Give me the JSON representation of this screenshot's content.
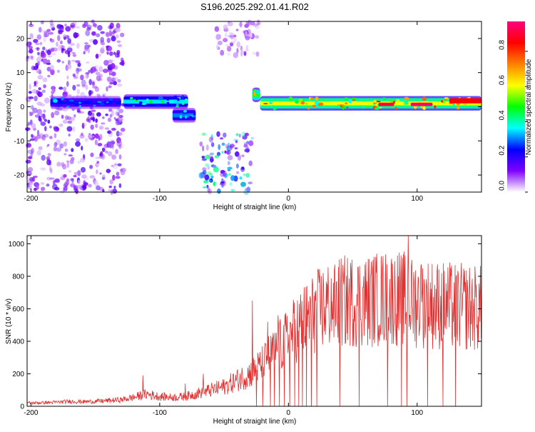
{
  "title": "S196.2025.292.01.41.R02",
  "chart_data": [
    {
      "type": "heatmap",
      "xlabel": "Height of straight line (km)",
      "ylabel": "Frequency (Hz)",
      "xlim": [
        -203,
        150
      ],
      "ylim": [
        -25,
        25
      ],
      "x_ticks": [
        "-200",
        "-100",
        "0",
        "100"
      ],
      "x_tick_values": [
        -200,
        -100,
        0,
        100
      ],
      "y_ticks": [
        "20",
        "10",
        "0",
        "-10",
        "-20"
      ],
      "y_tick_values": [
        20,
        10,
        0,
        -10,
        -20
      ],
      "colorbar": {
        "label": "Normalized spectral amplitude",
        "range": [
          0,
          0.97
        ],
        "ticks": [
          "0.0",
          "0.2",
          "0.4",
          "0.6",
          "0.8"
        ],
        "tick_values": [
          0.0,
          0.2,
          0.4,
          0.6,
          0.8
        ],
        "colors": [
          "#ffffff",
          "#8000ff",
          "#0000ff",
          "#00ffff",
          "#00ff00",
          "#ffff00",
          "#ff8000",
          "#ff0000",
          "#ff0080"
        ]
      },
      "regions": [
        {
          "label": "scattered noise",
          "x": [
            -203,
            -128
          ],
          "y": [
            -25,
            25
          ],
          "amplitude": 0.12
        },
        {
          "label": "band",
          "x": [
            -185,
            -130
          ],
          "y": [
            0,
            2.5
          ],
          "amplitude": 0.25
        },
        {
          "label": "band",
          "x": [
            -128,
            -78
          ],
          "y": [
            0,
            3
          ],
          "amplitude": 0.35
        },
        {
          "label": "band",
          "x": [
            -90,
            -72
          ],
          "y": [
            -4,
            -1
          ],
          "amplitude": 0.3
        },
        {
          "label": "scattered noise",
          "x": [
            -68,
            -28
          ],
          "y": [
            -25,
            -8
          ],
          "amplitude": 0.3
        },
        {
          "label": "scattered noise",
          "x": [
            -58,
            -22
          ],
          "y": [
            15,
            25
          ],
          "amplitude": 0.08
        },
        {
          "label": "onset",
          "x": [
            -28,
            -22
          ],
          "y": [
            2,
            5
          ],
          "amplitude": 0.5
        },
        {
          "label": "band",
          "x": [
            -22,
            150
          ],
          "y": [
            -0.5,
            2.5
          ],
          "amplitude": 0.6
        },
        {
          "label": "peak",
          "x": [
            70,
            82
          ],
          "y": [
            0.2,
            1.2
          ],
          "amplitude": 0.9
        },
        {
          "label": "peak",
          "x": [
            95,
            112
          ],
          "y": [
            0.2,
            1.2
          ],
          "amplitude": 0.95
        },
        {
          "label": "peak",
          "x": [
            125,
            150
          ],
          "y": [
            1.0,
            2.5
          ],
          "amplitude": 0.85
        }
      ]
    },
    {
      "type": "line",
      "xlabel": "Height of straight line (km)",
      "ylabel": "SNR (10 * v/v)",
      "xlim": [
        -203,
        150
      ],
      "ylim": [
        0,
        1050
      ],
      "x_ticks": [
        "-200",
        "-100",
        "0",
        "100"
      ],
      "x_tick_values": [
        -200,
        -100,
        0,
        100
      ],
      "y_ticks": [
        "0",
        "200",
        "400",
        "600",
        "800",
        "1000"
      ],
      "y_tick_values": [
        0,
        200,
        400,
        600,
        800,
        1000
      ],
      "color": "#e03030",
      "series": [
        {
          "x": [
            -203,
            -190,
            -180,
            -170,
            -160,
            -150,
            -140,
            -130,
            -120,
            -110,
            -100,
            -90,
            -80,
            -70,
            -60,
            -50,
            -40,
            -30,
            -25,
            -20,
            -15,
            -10,
            -5,
            0,
            5,
            10,
            15,
            20,
            25,
            30,
            40,
            50,
            60,
            70,
            80,
            90,
            95,
            100,
            110,
            120,
            130,
            140,
            150
          ],
          "values": [
            20,
            22,
            25,
            30,
            28,
            30,
            35,
            40,
            55,
            75,
            60,
            55,
            60,
            80,
            100,
            120,
            160,
            200,
            230,
            260,
            310,
            350,
            380,
            420,
            470,
            510,
            540,
            570,
            600,
            620,
            640,
            650,
            650,
            660,
            670,
            660,
            650,
            640,
            630,
            620,
            610,
            610,
            600
          ]
        }
      ],
      "spikes_up": [
        [
          -113,
          190
        ],
        [
          -80,
          140
        ],
        [
          -66,
          200
        ],
        [
          -28,
          650
        ],
        [
          -16,
          520
        ],
        [
          -8,
          560
        ],
        [
          20,
          680
        ],
        [
          35,
          760
        ],
        [
          73,
          840
        ],
        [
          88,
          800
        ],
        [
          93,
          1050
        ],
        [
          96,
          900
        ],
        [
          103,
          860
        ]
      ],
      "spikes_down": [
        -25,
        -20,
        -14,
        -11,
        -7,
        -3,
        1,
        5,
        8,
        11,
        14,
        18,
        22,
        40,
        55,
        77,
        88,
        92,
        108,
        120,
        130
      ]
    }
  ]
}
